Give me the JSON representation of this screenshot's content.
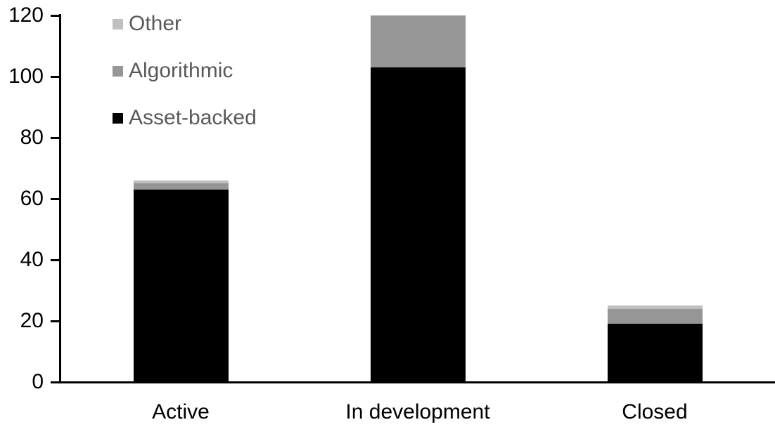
{
  "chart_data": {
    "type": "bar",
    "stacked": true,
    "title": "",
    "xlabel": "",
    "ylabel": "",
    "categories": [
      "Active",
      "In development",
      "Closed"
    ],
    "series": [
      {
        "name": "Asset-backed",
        "color": "#000000",
        "values": [
          63,
          103,
          19
        ]
      },
      {
        "name": "Algorithmic",
        "color": "#969696",
        "values": [
          2,
          17,
          5
        ]
      },
      {
        "name": "Other",
        "color": "#c0c0c0",
        "values": [
          1,
          0,
          1
        ]
      }
    ],
    "totals": [
      66,
      120,
      25
    ],
    "ylim": [
      0,
      120
    ],
    "yticks": [
      "0",
      "20",
      "40",
      "60",
      "80",
      "100",
      "120"
    ],
    "ytick_values": [
      0,
      20,
      40,
      60,
      80,
      100,
      120
    ],
    "grid": "off",
    "legend_position": "top-left-inside",
    "legend_order_top_to_bottom": [
      "Other",
      "Algorithmic",
      "Asset-backed"
    ],
    "axis_color": "#000000",
    "tick_label_color": "#000000",
    "category_label_color": "#000000",
    "legend_text_color": "#595959",
    "background_color": "#ffffff"
  }
}
